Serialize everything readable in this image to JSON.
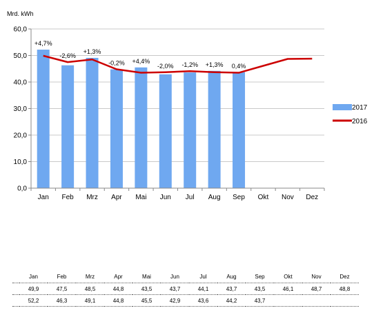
{
  "chart_data": {
    "type": "bar+line",
    "unit_label": "Mrd. kWh",
    "categories": [
      "Jan",
      "Feb",
      "Mrz",
      "Apr",
      "Mai",
      "Jun",
      "Jul",
      "Aug",
      "Sep",
      "Okt",
      "Nov",
      "Dez"
    ],
    "y_ticks": [
      "0,0",
      "10,0",
      "20,0",
      "30,0",
      "40,0",
      "50,0",
      "60,0"
    ],
    "ylim": [
      0,
      60
    ],
    "grid": true,
    "legend_position": "right",
    "series": [
      {
        "name": "2017",
        "kind": "bar",
        "color": "#6fa8f0",
        "values": [
          52.2,
          46.3,
          49.1,
          44.8,
          45.5,
          42.9,
          43.6,
          44.2,
          43.7,
          null,
          null,
          null
        ],
        "display": [
          "52,2",
          "46,3",
          "49,1",
          "44,8",
          "45,5",
          "42,9",
          "43,6",
          "44,2",
          "43,7",
          "",
          "",
          ""
        ]
      },
      {
        "name": "2016",
        "kind": "line",
        "color": "#cc0000",
        "values": [
          49.9,
          47.5,
          48.5,
          44.8,
          43.5,
          43.7,
          44.1,
          43.7,
          43.5,
          46.1,
          48.7,
          48.8
        ],
        "display": [
          "49,9",
          "47,5",
          "48,5",
          "44,8",
          "43,5",
          "43,7",
          "44,1",
          "43,7",
          "43,5",
          "46,1",
          "48,7",
          "48,8"
        ]
      }
    ],
    "annotations": [
      "+4,7%",
      "-2,6%",
      "+1,3%",
      "-0,2%",
      "+4,4%",
      "-2,0%",
      "-1,2%",
      "+1,3%",
      "0,4%"
    ]
  }
}
